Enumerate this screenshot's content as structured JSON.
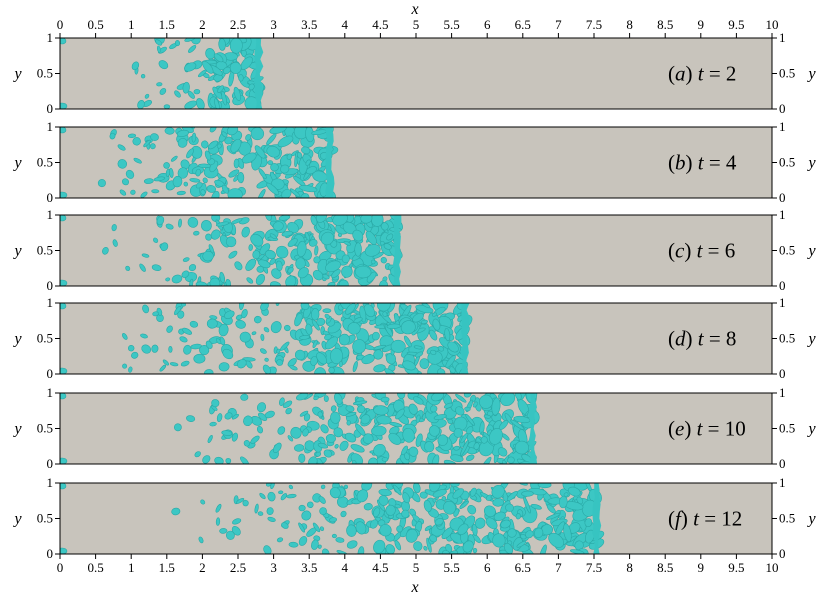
{
  "chart_data": {
    "type": "heatmap",
    "xlabel": "x",
    "ylabel": "y",
    "xlim": [
      0,
      10
    ],
    "ylim": [
      0,
      1
    ],
    "x_ticks": [
      "0",
      "0.5",
      "1",
      "1.5",
      "2",
      "2.5",
      "3",
      "3.5",
      "4",
      "4.5",
      "5",
      "5.5",
      "6",
      "6.5",
      "7",
      "7.5",
      "8",
      "8.5",
      "9",
      "9.5",
      "10"
    ],
    "y_ticks_left": [
      "0",
      "0.5",
      "1"
    ],
    "y_ticks_right": [
      "0",
      "0.5",
      "1"
    ],
    "colors": {
      "field": "#c8c4bc",
      "isosurface": "#3cc7c4"
    },
    "panels": [
      {
        "tag": "a",
        "t": "2",
        "front_x": 2.8,
        "region_start_x": 1.0
      },
      {
        "tag": "b",
        "t": "4",
        "front_x": 3.8,
        "region_start_x": 0.3
      },
      {
        "tag": "c",
        "t": "6",
        "front_x": 4.75,
        "region_start_x": 0.5
      },
      {
        "tag": "d",
        "t": "8",
        "front_x": 5.7,
        "region_start_x": 0.5
      },
      {
        "tag": "e",
        "t": "10",
        "front_x": 6.65,
        "region_start_x": 1.3
      },
      {
        "tag": "f",
        "t": "12",
        "front_x": 7.55,
        "region_start_x": 1.6
      }
    ]
  }
}
